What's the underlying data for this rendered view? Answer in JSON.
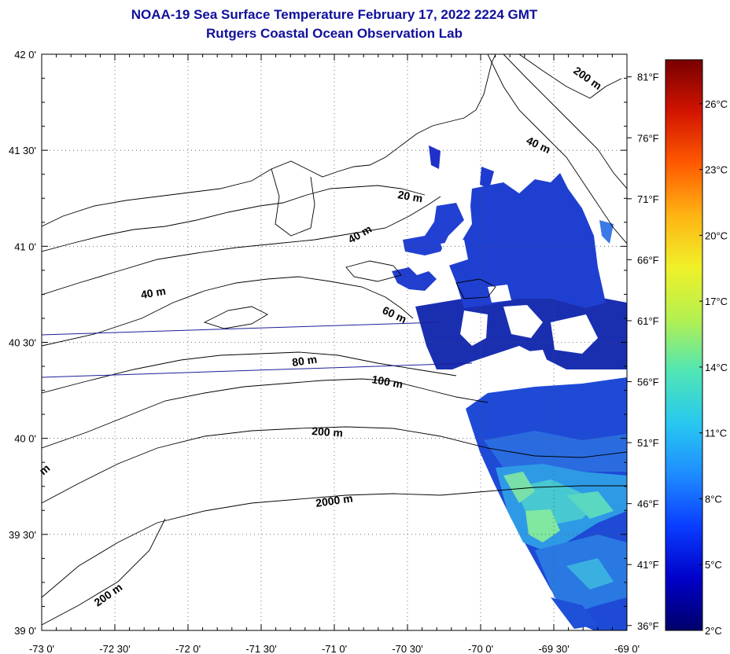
{
  "title": "NOAA-19 Sea Surface Temperature February 17, 2022 2224 GMT",
  "subtitle": "Rutgers Coastal Ocean Observation Lab",
  "lat_ticks": [
    {
      "label": "42 0'",
      "value": 42.0
    },
    {
      "label": "41 30'",
      "value": 41.5
    },
    {
      "label": "41 0'",
      "value": 41.0
    },
    {
      "label": "40 30'",
      "value": 40.5
    },
    {
      "label": "40 0'",
      "value": 40.0
    },
    {
      "label": "39 30'",
      "value": 39.5
    },
    {
      "label": "39 0'",
      "value": 39.0
    }
  ],
  "lon_ticks": [
    {
      "label": "-73 0'",
      "value": -73.0
    },
    {
      "label": "-72 30'",
      "value": -72.5
    },
    {
      "label": "-72 0'",
      "value": -72.0
    },
    {
      "label": "-71 30'",
      "value": -71.5
    },
    {
      "label": "-71 0'",
      "value": -71.0
    },
    {
      "label": "-70 30'",
      "value": -70.5
    },
    {
      "label": "-70 0'",
      "value": -70.0
    },
    {
      "label": "-69 30'",
      "value": -69.5
    },
    {
      "label": "-69 0'",
      "value": -69.0
    }
  ],
  "map_extent": {
    "lon": [
      -73.0,
      -69.0
    ],
    "lat": [
      39.0,
      42.0
    ]
  },
  "depth_labels": [
    "200 m",
    "40 m",
    "20 m",
    "40 m",
    "40 m",
    "60 m",
    "80 m",
    "100 m",
    "200 m",
    "2000 m",
    "200 m",
    "m"
  ],
  "colorbar": {
    "range_c": [
      2,
      28
    ],
    "colors": [
      "#00006a",
      "#0000c8",
      "#0a3cff",
      "#1e8cff",
      "#28c8f0",
      "#50e6b4",
      "#b4f050",
      "#f0f028",
      "#ffb414",
      "#ff5a00",
      "#d21400",
      "#780000"
    ],
    "celsius_labels": [
      "26°C",
      "23°C",
      "20°C",
      "17°C",
      "14°C",
      "11°C",
      "8°C",
      "5°C",
      "2°C"
    ],
    "fahrenheit_labels": [
      "81°F",
      "76°F",
      "71°F",
      "66°F",
      "61°F",
      "56°F",
      "51°F",
      "46°F",
      "41°F",
      "36°F"
    ]
  },
  "sst_color_scale": [
    "#1030b8",
    "#1e50d8",
    "#2870e0",
    "#30a0e8",
    "#50d0c8",
    "#80e8a0"
  ]
}
